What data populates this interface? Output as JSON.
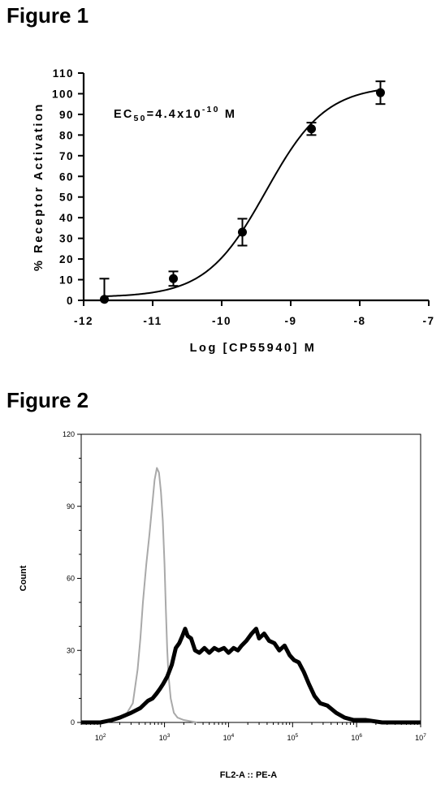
{
  "figure1": {
    "title": "Figure 1",
    "chart_data": {
      "type": "scatter",
      "xlabel": "Log [CP55940] M",
      "ylabel": "% Receptor Activation",
      "annotation": {
        "prefix": "EC",
        "sub": "50",
        "mid": "=4.4x10",
        "sup": "-10",
        "suffix": " M"
      },
      "xlim": [
        -12,
        -7
      ],
      "ylim": [
        0,
        110
      ],
      "x_ticks": [
        -12,
        -11,
        -10,
        -9,
        -8,
        -7
      ],
      "x_tick_labels": [
        "-12",
        "-11",
        "-10",
        "-9",
        "-8",
        "-7"
      ],
      "y_ticks": [
        0,
        10,
        20,
        30,
        40,
        50,
        60,
        70,
        80,
        90,
        100,
        110
      ],
      "y_tick_labels": [
        "0",
        "10",
        "20",
        "30",
        "40",
        "50",
        "60",
        "70",
        "80",
        "90",
        "100",
        "110"
      ],
      "series": [
        {
          "points": [
            {
              "x": -11.7,
              "y": 0.5,
              "err": 10
            },
            {
              "x": -10.7,
              "y": 10.5,
              "err": 3.5
            },
            {
              "x": -9.7,
              "y": 33,
              "err": 6.5
            },
            {
              "x": -8.7,
              "y": 83,
              "err": 3
            },
            {
              "x": -7.7,
              "y": 100.5,
              "err": 5.5
            }
          ],
          "fit_curve": {
            "model": "sigmoidal dose-response",
            "bottom": 1.5,
            "top": 104,
            "logEC50": -9.36,
            "hill": 1
          }
        }
      ],
      "grid": false
    }
  },
  "figure2": {
    "title": "Figure 2",
    "chart_data": {
      "type": "line",
      "xlabel": "FL2-A :: PE-A",
      "ylabel": "Count",
      "x_scale": "log",
      "xlim": [
        50,
        10000000
      ],
      "ylim": [
        0,
        120
      ],
      "x_tick_labels": [
        {
          "base": "10",
          "exp": "2"
        },
        {
          "base": "10",
          "exp": "3"
        },
        {
          "base": "10",
          "exp": "4"
        },
        {
          "base": "10",
          "exp": "5"
        },
        {
          "base": "10",
          "exp": "6"
        },
        {
          "base": "10",
          "exp": "7"
        }
      ],
      "y_ticks": [
        0,
        30,
        60,
        90,
        120
      ],
      "y_tick_labels": [
        "0",
        "30",
        "60",
        "90",
        "120"
      ],
      "series": [
        {
          "color": "#a9a9a9",
          "points": [
            [
              50,
              0
            ],
            [
              100,
              0
            ],
            [
              150,
              1
            ],
            [
              200,
              2
            ],
            [
              260,
              4
            ],
            [
              320,
              8
            ],
            [
              380,
              22
            ],
            [
              420,
              35
            ],
            [
              460,
              50
            ],
            [
              520,
              66
            ],
            [
              580,
              78
            ],
            [
              640,
              90
            ],
            [
              700,
              101
            ],
            [
              760,
              106
            ],
            [
              820,
              104
            ],
            [
              880,
              96
            ],
            [
              940,
              84
            ],
            [
              1000,
              66
            ],
            [
              1050,
              47
            ],
            [
              1100,
              31
            ],
            [
              1150,
              20
            ],
            [
              1250,
              10
            ],
            [
              1400,
              4
            ],
            [
              1600,
              2
            ],
            [
              2000,
              1
            ],
            [
              3200,
              0
            ]
          ]
        },
        {
          "color": "#000000",
          "points": [
            [
              50,
              0
            ],
            [
              100,
              0
            ],
            [
              150,
              1
            ],
            [
              200,
              2
            ],
            [
              300,
              4
            ],
            [
              420,
              6
            ],
            [
              550,
              9
            ],
            [
              650,
              10
            ],
            [
              750,
              12
            ],
            [
              850,
              14
            ],
            [
              950,
              16
            ],
            [
              1100,
              19
            ],
            [
              1300,
              24
            ],
            [
              1500,
              31
            ],
            [
              1700,
              33
            ],
            [
              1900,
              36
            ],
            [
              2100,
              39
            ],
            [
              2300,
              36
            ],
            [
              2600,
              35
            ],
            [
              3000,
              30
            ],
            [
              3500,
              29
            ],
            [
              4200,
              31
            ],
            [
              5000,
              29
            ],
            [
              6000,
              31
            ],
            [
              7000,
              30
            ],
            [
              8500,
              31
            ],
            [
              10000,
              29
            ],
            [
              12000,
              31
            ],
            [
              14000,
              30
            ],
            [
              16000,
              32
            ],
            [
              19000,
              34
            ],
            [
              23000,
              37
            ],
            [
              27000,
              39
            ],
            [
              30000,
              35
            ],
            [
              36000,
              37
            ],
            [
              43000,
              34
            ],
            [
              52000,
              33
            ],
            [
              62000,
              30
            ],
            [
              75000,
              32
            ],
            [
              90000,
              28
            ],
            [
              105000,
              26
            ],
            [
              125000,
              25
            ],
            [
              150000,
              21
            ],
            [
              180000,
              16
            ],
            [
              220000,
              11
            ],
            [
              270000,
              8
            ],
            [
              350000,
              7
            ],
            [
              480000,
              4
            ],
            [
              650000,
              2
            ],
            [
              900000,
              1
            ],
            [
              1400000,
              1
            ],
            [
              2500000,
              0
            ],
            [
              10000000,
              0
            ]
          ]
        }
      ],
      "grid": false
    }
  }
}
